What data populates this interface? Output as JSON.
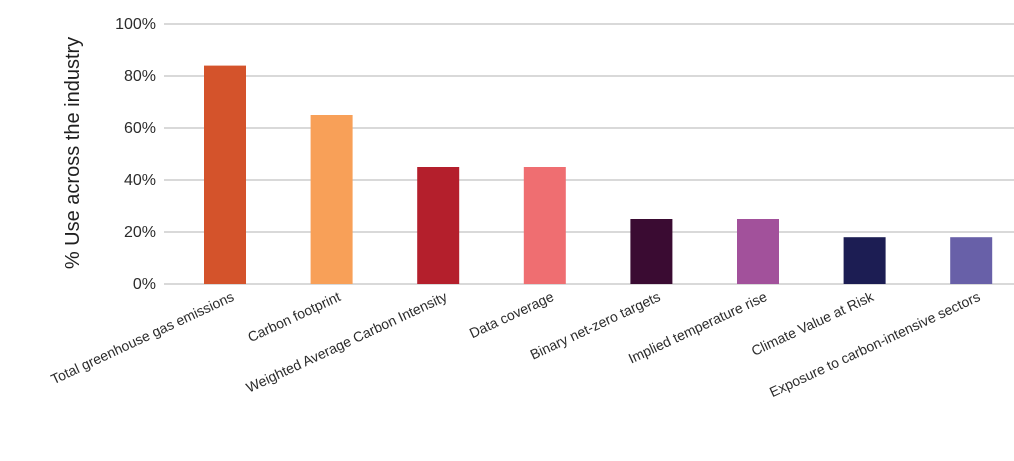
{
  "chart_data": {
    "type": "bar",
    "title": "",
    "xlabel": "",
    "ylabel": "% Use across the industry",
    "categories": [
      "Total greenhouse gas emissions",
      "Carbon footprint",
      "Weighted Average Carbon Intensity",
      "Data coverage",
      "Binary net-zero targets",
      "Implied temperature rise",
      "Climate Value at Risk",
      "Exposure to carbon-intensive sectors"
    ],
    "values": [
      84,
      65,
      45,
      45,
      25,
      25,
      18,
      18
    ],
    "colors": [
      "#d4532b",
      "#f8a058",
      "#b41f2c",
      "#ef6e71",
      "#3a0b32",
      "#a2519b",
      "#1c1d53",
      "#6860a8"
    ],
    "ylim": [
      0,
      100
    ],
    "yticks": [
      0,
      20,
      40,
      60,
      80,
      100
    ],
    "ytick_labels": [
      "0%",
      "20%",
      "40%",
      "60%",
      "80%",
      "100%"
    ],
    "grid": true,
    "legend": "none"
  }
}
